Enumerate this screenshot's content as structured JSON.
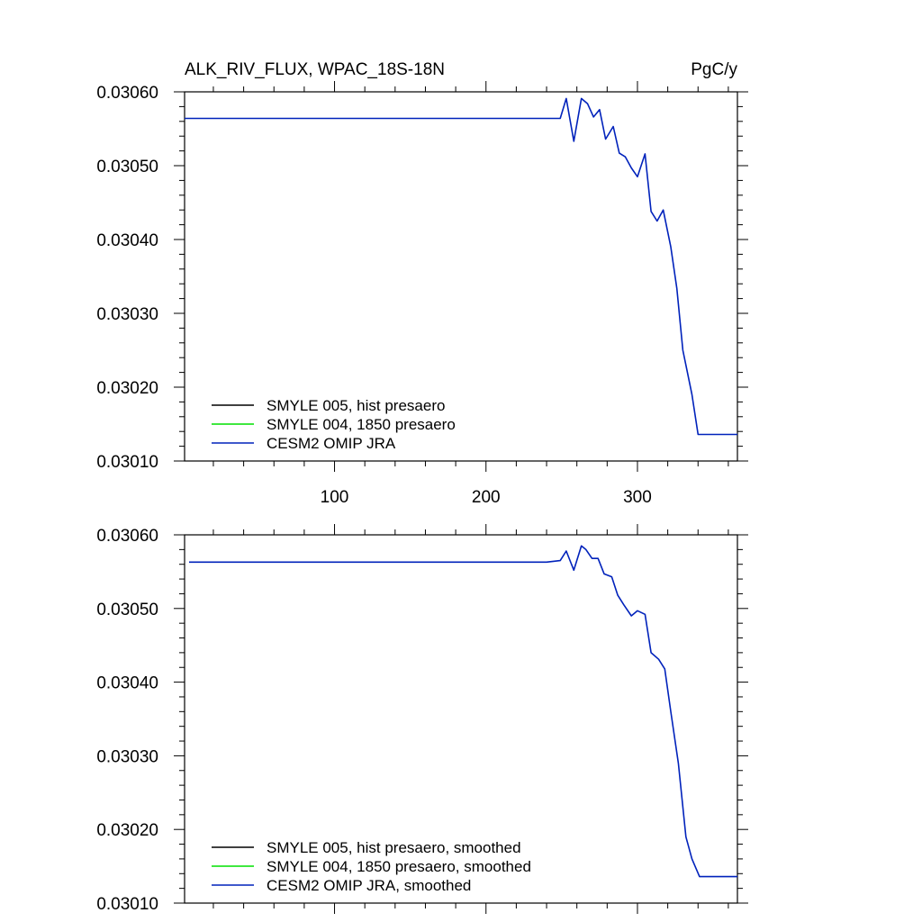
{
  "chart_data": [
    {
      "type": "line",
      "title": "ALK_RIV_FLUX, WPAC_18S-18N",
      "units": "PgC/y",
      "xlim": [
        1,
        366
      ],
      "ylim": [
        0.0301,
        0.0306
      ],
      "x_ticks": [
        100,
        200,
        300
      ],
      "x_tick_labels": [
        "100",
        "200",
        "300"
      ],
      "y_ticks": [
        0.0301,
        0.0302,
        0.0303,
        0.0304,
        0.0305,
        0.0306
      ],
      "y_tick_labels": [
        "0.03010",
        "0.03020",
        "0.03030",
        "0.03040",
        "0.03050",
        "0.03060"
      ],
      "legend_position": "bottom-left",
      "series": [
        {
          "name": "SMYLE 005, hist presaero",
          "color": "#000000",
          "x": [],
          "y": []
        },
        {
          "name": "SMYLE 004, 1850 presaero",
          "color": "#00e000",
          "x": [],
          "y": []
        },
        {
          "name": "CESM2 OMIP JRA",
          "color": "#0022bb",
          "x": [
            1,
            240,
            249,
            253,
            258,
            263,
            267,
            271,
            275,
            279,
            284,
            288,
            292,
            296,
            300,
            305,
            309,
            313,
            317,
            322,
            326,
            330,
            336,
            340,
            344,
            349,
            366
          ],
          "y": [
            0.030564,
            0.030564,
            0.030564,
            0.030591,
            0.030533,
            0.030591,
            0.030584,
            0.030566,
            0.030576,
            0.030536,
            0.030553,
            0.030517,
            0.030512,
            0.030497,
            0.030485,
            0.030516,
            0.030438,
            0.030425,
            0.03044,
            0.03039,
            0.030334,
            0.03025,
            0.03019,
            0.030136,
            0.030136,
            0.030136,
            0.030136
          ]
        }
      ]
    },
    {
      "type": "line",
      "title": "",
      "units": "",
      "xlim": [
        1,
        366
      ],
      "ylim": [
        0.0301,
        0.0306
      ],
      "x_ticks": [
        100,
        200,
        300
      ],
      "x_tick_labels": [],
      "y_ticks": [
        0.0301,
        0.0302,
        0.0303,
        0.0304,
        0.0305,
        0.0306
      ],
      "y_tick_labels": [
        "0.03010",
        "0.03020",
        "0.03030",
        "0.03040",
        "0.03050",
        "0.03060"
      ],
      "legend_position": "bottom-left",
      "series": [
        {
          "name": "SMYLE 005, hist presaero, smoothed",
          "color": "#000000",
          "x": [],
          "y": []
        },
        {
          "name": "SMYLE 004, 1850 presaero, smoothed",
          "color": "#00e000",
          "x": [],
          "y": []
        },
        {
          "name": "CESM2 OMIP JRA, smoothed",
          "color": "#0022bb",
          "x": [
            4,
            240,
            249,
            253,
            258,
            263,
            266,
            270,
            274,
            278,
            283,
            287,
            291,
            296,
            300,
            305,
            309,
            314,
            318,
            322,
            327,
            332,
            336,
            341,
            345,
            350,
            366
          ],
          "y": [
            0.030563,
            0.030563,
            0.030565,
            0.030578,
            0.030552,
            0.030585,
            0.03058,
            0.030568,
            0.030568,
            0.030547,
            0.030543,
            0.030518,
            0.030505,
            0.03049,
            0.030497,
            0.030492,
            0.03044,
            0.030431,
            0.030418,
            0.03036,
            0.03029,
            0.03019,
            0.03016,
            0.030136,
            0.030136,
            0.030136,
            0.030136
          ]
        }
      ]
    }
  ]
}
